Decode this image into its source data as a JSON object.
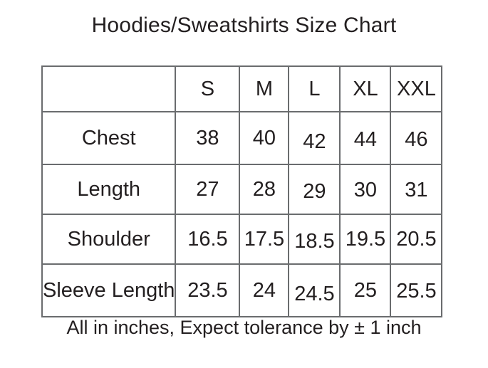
{
  "page": {
    "title": "Hoodies/Sweatshirts Size Chart",
    "note": "All in inches, Expect tolerance by ± 1 inch"
  },
  "colors": {
    "text": "#231f20",
    "border": "#6a6c6e",
    "background": "#ffffff"
  },
  "chart_data": {
    "type": "table",
    "title": "Hoodies/Sweatshirts Size Chart",
    "columns": [
      "",
      "S",
      "M",
      "L",
      "XL",
      "XXL"
    ],
    "rows": [
      {
        "label": "Chest",
        "values": [
          38,
          40,
          42,
          44,
          46
        ]
      },
      {
        "label": "Length",
        "values": [
          27,
          28,
          29,
          30,
          31
        ]
      },
      {
        "label": "Shoulder",
        "values": [
          16.5,
          17.5,
          18.5,
          19.5,
          20.5
        ]
      },
      {
        "label": "Sleeve Length",
        "values": [
          23.5,
          24,
          24.5,
          25,
          25.5
        ]
      }
    ],
    "note": "All in inches, Expect tolerance by ± 1 inch",
    "legend_position": "none",
    "grid": "full-borders"
  }
}
